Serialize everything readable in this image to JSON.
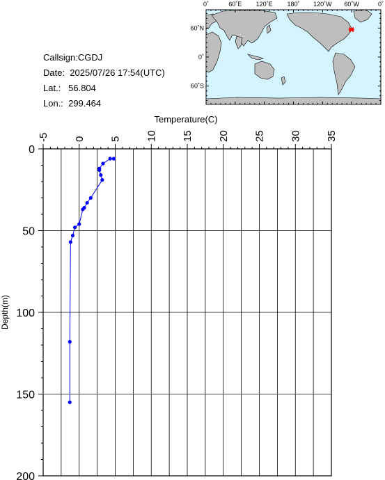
{
  "info": {
    "callsign": "Callsign:CGDJ",
    "date": "Date:  2025/07/26 17:54(UTC)",
    "lat": "Lat.:   56.804",
    "lon": "Lon.:  299.464"
  },
  "map": {
    "top_labels": [
      "0˚",
      "60˚E",
      "120˚E",
      "180˚",
      "120˚W",
      "60˚W",
      "0˚"
    ],
    "left_labels": [
      "60˚N",
      "0˚",
      "60˚S"
    ],
    "ocean_color": "#d4f5ff",
    "land_color": "#bebebe",
    "marker_color": "#ff0000",
    "marker": {
      "lon": 299.464,
      "lat": 56.804
    }
  },
  "chart_data": {
    "type": "line",
    "xlabel": "Temperature(C)",
    "ylabel": "Depth(m)",
    "xlim": [
      -5,
      35
    ],
    "ylim": [
      0,
      200
    ],
    "y_inverted": true,
    "x_ticks": [
      -5,
      0,
      5,
      10,
      15,
      20,
      25,
      30,
      35
    ],
    "y_ticks": [
      0,
      50,
      100,
      150,
      200
    ],
    "grid": true,
    "line_color": "#0000ff",
    "series": [
      {
        "points": [
          {
            "t": 4.8,
            "d": 6
          },
          {
            "t": 4.3,
            "d": 6
          },
          {
            "t": 3.3,
            "d": 9
          },
          {
            "t": 2.8,
            "d": 12
          },
          {
            "t": 2.8,
            "d": 13
          },
          {
            "t": 3.0,
            "d": 16
          },
          {
            "t": 3.2,
            "d": 19
          },
          {
            "t": 1.6,
            "d": 30
          },
          {
            "t": 1.1,
            "d": 33
          },
          {
            "t": 0.7,
            "d": 36
          },
          {
            "t": 0.5,
            "d": 37
          },
          {
            "t": 0.0,
            "d": 46
          },
          {
            "t": -0.6,
            "d": 48
          },
          {
            "t": -0.9,
            "d": 53
          },
          {
            "t": -1.2,
            "d": 57
          },
          {
            "t": -1.3,
            "d": 118
          },
          {
            "t": -1.3,
            "d": 155
          }
        ]
      }
    ]
  }
}
